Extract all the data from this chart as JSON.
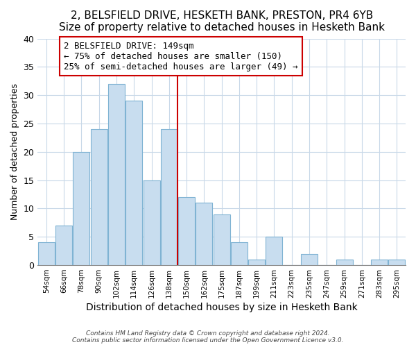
{
  "title1": "2, BELSFIELD DRIVE, HESKETH BANK, PRESTON, PR4 6YB",
  "title2": "Size of property relative to detached houses in Hesketh Bank",
  "xlabel": "Distribution of detached houses by size in Hesketh Bank",
  "ylabel": "Number of detached properties",
  "footer1": "Contains HM Land Registry data © Crown copyright and database right 2024.",
  "footer2": "Contains public sector information licensed under the Open Government Licence v3.0.",
  "bar_labels": [
    "54sqm",
    "66sqm",
    "78sqm",
    "90sqm",
    "102sqm",
    "114sqm",
    "126sqm",
    "138sqm",
    "150sqm",
    "162sqm",
    "175sqm",
    "187sqm",
    "199sqm",
    "211sqm",
    "223sqm",
    "235sqm",
    "247sqm",
    "259sqm",
    "271sqm",
    "283sqm",
    "295sqm"
  ],
  "bar_values": [
    4,
    7,
    20,
    24,
    32,
    29,
    15,
    24,
    12,
    11,
    9,
    4,
    1,
    5,
    0,
    2,
    0,
    1,
    0,
    1,
    1
  ],
  "bar_color": "#c8ddef",
  "bar_edge_color": "#7fb3d3",
  "vline_color": "#cc0000",
  "annotation_text": "2 BELSFIELD DRIVE: 149sqm\n← 75% of detached houses are smaller (150)\n25% of semi-detached houses are larger (49) →",
  "annotation_box_color": "#ffffff",
  "annotation_box_edge": "#cc0000",
  "ylim": [
    0,
    40
  ],
  "background_color": "#ffffff",
  "grid_color": "#c8d8e8",
  "title1_fontsize": 11,
  "title2_fontsize": 10,
  "xlabel_fontsize": 10,
  "ylabel_fontsize": 9,
  "annotation_fontsize": 9
}
